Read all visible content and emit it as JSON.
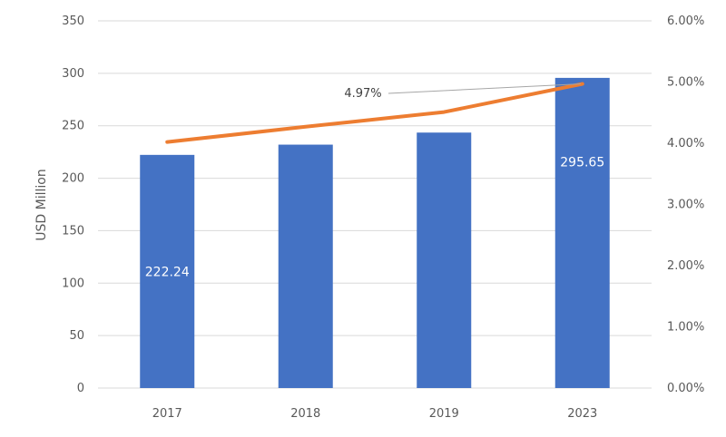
{
  "chart_data": {
    "type": "bar",
    "categories": [
      "2017",
      "2018",
      "2019",
      "2023"
    ],
    "series": [
      {
        "values": [
          222.24,
          232,
          243.5,
          295.65
        ],
        "color": "#4472c4",
        "axis": "left",
        "data_labels": [
          "222.24",
          "",
          "",
          "295.65"
        ]
      },
      {
        "type": "line",
        "values": [
          0.0402,
          0.0427,
          0.0451,
          0.0497
        ],
        "color": "#ed7d31",
        "axis": "right"
      }
    ],
    "ylabel": "USD Million",
    "ylim": [
      0,
      350
    ],
    "yticks": [
      "0",
      "50",
      "100",
      "150",
      "200",
      "250",
      "300",
      "350"
    ],
    "y2lim": [
      0,
      0.06
    ],
    "y2ticks": [
      "0.00%",
      "1.00%",
      "2.00%",
      "3.00%",
      "4.00%",
      "5.00%",
      "6.00%"
    ],
    "annotations": [
      {
        "text": "4.97%",
        "target_series": 1,
        "target_index": 3
      }
    ],
    "grid": true,
    "legend": "none"
  }
}
